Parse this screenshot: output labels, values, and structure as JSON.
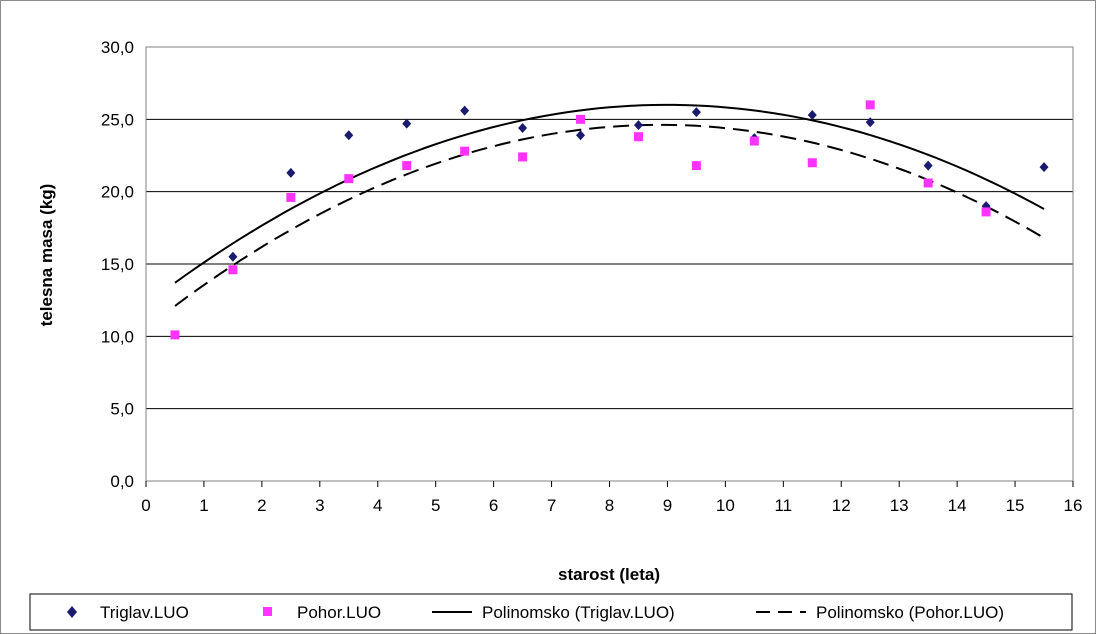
{
  "chart_data": {
    "type": "scatter",
    "title": "",
    "xlabel": "starost (leta)",
    "ylabel": "telesna masa (kg)",
    "xlim": [
      0,
      16
    ],
    "ylim": [
      0,
      30
    ],
    "x_ticks": [
      "0",
      "1",
      "2",
      "3",
      "4",
      "5",
      "6",
      "7",
      "8",
      "9",
      "10",
      "11",
      "12",
      "13",
      "14",
      "15",
      "16"
    ],
    "y_ticks": [
      "0,0",
      "5,0",
      "10,0",
      "15,0",
      "20,0",
      "25,0",
      "30,0"
    ],
    "grid": "horizontal",
    "legend_position": "bottom",
    "colors": {
      "triglav": "#1a1a6e",
      "pohor": "#ff33ff",
      "trend": "#000000"
    },
    "series": [
      {
        "name": "Triglav.LUO",
        "kind": "points",
        "marker": "diamond",
        "x": [
          1.5,
          2.5,
          3.5,
          4.5,
          5.5,
          6.5,
          7.5,
          8.5,
          9.5,
          10.5,
          11.5,
          12.5,
          13.5,
          14.5,
          15.5
        ],
        "y": [
          15.5,
          21.3,
          23.9,
          24.7,
          25.6,
          24.4,
          23.9,
          24.6,
          25.5,
          23.7,
          25.3,
          24.8,
          21.8,
          19.0,
          21.7
        ]
      },
      {
        "name": "Pohor.LUO",
        "kind": "points",
        "marker": "square",
        "x": [
          0.5,
          1.5,
          2.5,
          3.5,
          4.5,
          5.5,
          6.5,
          7.5,
          8.5,
          9.5,
          10.5,
          11.5,
          12.5,
          13.5,
          14.5
        ],
        "y": [
          10.1,
          14.6,
          19.6,
          20.9,
          21.8,
          22.8,
          22.4,
          25.0,
          23.8,
          21.8,
          23.5,
          22.0,
          26.0,
          20.6,
          18.6
        ]
      },
      {
        "name": "Polinomsko (Triglav.LUO)",
        "kind": "trendline",
        "style": "solid",
        "x": [
          0.5,
          15.5
        ],
        "fit": "quadratic",
        "peak_x": 8.95,
        "peak_y": 26.0,
        "end_y": 18.8,
        "start_y": 13.7
      },
      {
        "name": "Polinomsko (Pohor.LUO)",
        "kind": "trendline",
        "style": "dashed",
        "x": [
          0.5,
          15.5
        ],
        "fit": "quadratic",
        "peak_x": 8.55,
        "peak_y": 24.6,
        "start_y": 12.1,
        "end_y": 16.8
      }
    ]
  }
}
